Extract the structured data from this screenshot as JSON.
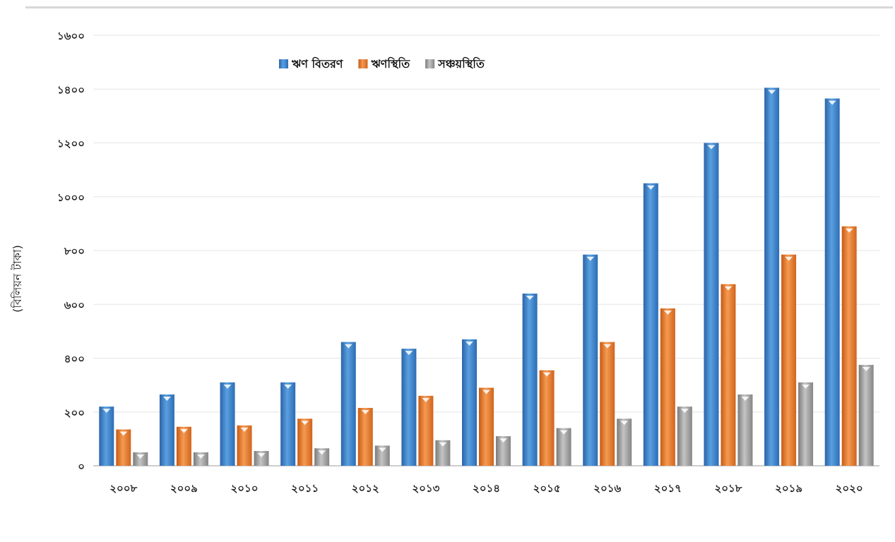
{
  "chart_data": {
    "type": "bar",
    "title": "",
    "xlabel": "",
    "ylabel": "(বিলিয়ন টাকা)",
    "ylim": [
      0,
      1600
    ],
    "y_ticks": [
      0,
      200,
      400,
      600,
      800,
      1000,
      1200,
      1400,
      1600
    ],
    "y_tick_labels": [
      "০",
      "২০০",
      "৪০০",
      "৬০০",
      "৮০০",
      "১০০০",
      "১২০০",
      "১৪০০",
      "১৬০০"
    ],
    "categories": [
      "২০০৮",
      "২০০৯",
      "২০১০",
      "২০১১",
      "২০১২",
      "২০১৩",
      "২০১৪",
      "২০১৫",
      "২০১৬",
      "২০১৭",
      "২০১৮",
      "২০১৯",
      "২০২০"
    ],
    "series": [
      {
        "name": "ঋণ বিতরণ",
        "color": "#3a7fc7",
        "values": [
          220,
          265,
          310,
          310,
          460,
          435,
          470,
          640,
          785,
          1050,
          1200,
          1405,
          1365
        ]
      },
      {
        "name": "ঋণস্থিতি",
        "color": "#e8762b",
        "values": [
          135,
          145,
          150,
          175,
          215,
          260,
          290,
          355,
          460,
          585,
          675,
          785,
          890
        ]
      },
      {
        "name": "সঞ্চয়স্থিতি",
        "color": "#9e9e9e",
        "values": [
          50,
          50,
          55,
          65,
          75,
          95,
          110,
          140,
          175,
          220,
          265,
          310,
          375
        ]
      }
    ],
    "legend_position": "top-center",
    "grid": true
  }
}
